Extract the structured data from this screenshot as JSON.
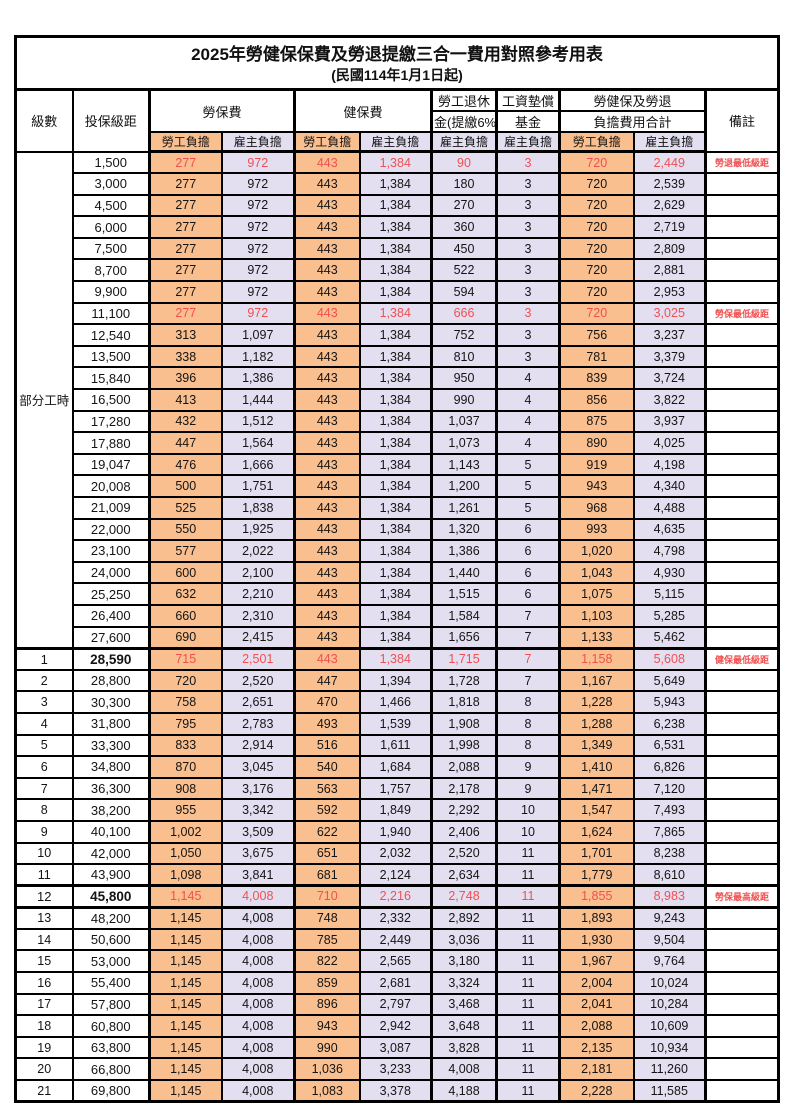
{
  "title": {
    "line1": "2025年勞健保保費及勞退提繳三合一費用對照參考用表",
    "line2": "(民國114年1月1日起)"
  },
  "colors": {
    "employee_bg": "#FABF8F",
    "employer_bg": "#E3DFF1",
    "highlight_text": "#F05050",
    "border": "#000000"
  },
  "header": {
    "level": "級數",
    "bracket": "投保級距",
    "labor_insurance": "勞保費",
    "health_insurance": "健保費",
    "pension_line1": "勞工退休",
    "pension_line2": "金(提繳6%)",
    "wage_fund_line1": "工資墊償",
    "wage_fund_line2": "基金",
    "total_line1": "勞健保及勞退",
    "total_line2": "負擔費用合計",
    "remark": "備註",
    "employee_share": "勞工負擔",
    "employer_share": "雇主負擔"
  },
  "table": {
    "part_time_label": "部分工時",
    "part_time_span": 23,
    "fee_column_names": [
      "labor-employee",
      "labor-employer",
      "health-employee",
      "health-employer",
      "pension-employer",
      "wagefund-employer",
      "total-employee",
      "total-employer"
    ],
    "rows": [
      {
        "bracket": "1,500",
        "fees": [
          "277",
          "972",
          "443",
          "1,384",
          "90",
          "3",
          "720",
          "2,449"
        ],
        "remark": "勞退最低級距",
        "red": true
      },
      {
        "bracket": "3,000",
        "fees": [
          "277",
          "972",
          "443",
          "1,384",
          "180",
          "3",
          "720",
          "2,539"
        ],
        "remark": ""
      },
      {
        "bracket": "4,500",
        "fees": [
          "277",
          "972",
          "443",
          "1,384",
          "270",
          "3",
          "720",
          "2,629"
        ],
        "remark": ""
      },
      {
        "bracket": "6,000",
        "fees": [
          "277",
          "972",
          "443",
          "1,384",
          "360",
          "3",
          "720",
          "2,719"
        ],
        "remark": ""
      },
      {
        "bracket": "7,500",
        "fees": [
          "277",
          "972",
          "443",
          "1,384",
          "450",
          "3",
          "720",
          "2,809"
        ],
        "remark": ""
      },
      {
        "bracket": "8,700",
        "fees": [
          "277",
          "972",
          "443",
          "1,384",
          "522",
          "3",
          "720",
          "2,881"
        ],
        "remark": ""
      },
      {
        "bracket": "9,900",
        "fees": [
          "277",
          "972",
          "443",
          "1,384",
          "594",
          "3",
          "720",
          "2,953"
        ],
        "remark": ""
      },
      {
        "bracket": "11,100",
        "fees": [
          "277",
          "972",
          "443",
          "1,384",
          "666",
          "3",
          "720",
          "3,025"
        ],
        "remark": "勞保最低級距",
        "red": true
      },
      {
        "bracket": "12,540",
        "fees": [
          "313",
          "1,097",
          "443",
          "1,384",
          "752",
          "3",
          "756",
          "3,237"
        ],
        "remark": ""
      },
      {
        "bracket": "13,500",
        "fees": [
          "338",
          "1,182",
          "443",
          "1,384",
          "810",
          "3",
          "781",
          "3,379"
        ],
        "remark": ""
      },
      {
        "bracket": "15,840",
        "fees": [
          "396",
          "1,386",
          "443",
          "1,384",
          "950",
          "4",
          "839",
          "3,724"
        ],
        "remark": ""
      },
      {
        "bracket": "16,500",
        "fees": [
          "413",
          "1,444",
          "443",
          "1,384",
          "990",
          "4",
          "856",
          "3,822"
        ],
        "remark": ""
      },
      {
        "bracket": "17,280",
        "fees": [
          "432",
          "1,512",
          "443",
          "1,384",
          "1,037",
          "4",
          "875",
          "3,937"
        ],
        "remark": ""
      },
      {
        "bracket": "17,880",
        "fees": [
          "447",
          "1,564",
          "443",
          "1,384",
          "1,073",
          "4",
          "890",
          "4,025"
        ],
        "remark": ""
      },
      {
        "bracket": "19,047",
        "fees": [
          "476",
          "1,666",
          "443",
          "1,384",
          "1,143",
          "5",
          "919",
          "4,198"
        ],
        "remark": ""
      },
      {
        "bracket": "20,008",
        "fees": [
          "500",
          "1,751",
          "443",
          "1,384",
          "1,200",
          "5",
          "943",
          "4,340"
        ],
        "remark": ""
      },
      {
        "bracket": "21,009",
        "fees": [
          "525",
          "1,838",
          "443",
          "1,384",
          "1,261",
          "5",
          "968",
          "4,488"
        ],
        "remark": ""
      },
      {
        "bracket": "22,000",
        "fees": [
          "550",
          "1,925",
          "443",
          "1,384",
          "1,320",
          "6",
          "993",
          "4,635"
        ],
        "remark": ""
      },
      {
        "bracket": "23,100",
        "fees": [
          "577",
          "2,022",
          "443",
          "1,384",
          "1,386",
          "6",
          "1,020",
          "4,798"
        ],
        "remark": ""
      },
      {
        "bracket": "24,000",
        "fees": [
          "600",
          "2,100",
          "443",
          "1,384",
          "1,440",
          "6",
          "1,043",
          "4,930"
        ],
        "remark": ""
      },
      {
        "bracket": "25,250",
        "fees": [
          "632",
          "2,210",
          "443",
          "1,384",
          "1,515",
          "6",
          "1,075",
          "5,115"
        ],
        "remark": ""
      },
      {
        "bracket": "26,400",
        "fees": [
          "660",
          "2,310",
          "443",
          "1,384",
          "1,584",
          "7",
          "1,103",
          "5,285"
        ],
        "remark": ""
      },
      {
        "bracket": "27,600",
        "fees": [
          "690",
          "2,415",
          "443",
          "1,384",
          "1,656",
          "7",
          "1,133",
          "5,462"
        ],
        "remark": ""
      },
      {
        "level": "1",
        "bracket": "28,590",
        "fees": [
          "715",
          "2,501",
          "443",
          "1,384",
          "1,715",
          "7",
          "1,158",
          "5,608"
        ],
        "remark": "健保最低級距",
        "red": true,
        "bold": true,
        "thick_top": true
      },
      {
        "level": "2",
        "bracket": "28,800",
        "fees": [
          "720",
          "2,520",
          "447",
          "1,394",
          "1,728",
          "7",
          "1,167",
          "5,649"
        ],
        "remark": ""
      },
      {
        "level": "3",
        "bracket": "30,300",
        "fees": [
          "758",
          "2,651",
          "470",
          "1,466",
          "1,818",
          "8",
          "1,228",
          "5,943"
        ],
        "remark": ""
      },
      {
        "level": "4",
        "bracket": "31,800",
        "fees": [
          "795",
          "2,783",
          "493",
          "1,539",
          "1,908",
          "8",
          "1,288",
          "6,238"
        ],
        "remark": ""
      },
      {
        "level": "5",
        "bracket": "33,300",
        "fees": [
          "833",
          "2,914",
          "516",
          "1,611",
          "1,998",
          "8",
          "1,349",
          "6,531"
        ],
        "remark": ""
      },
      {
        "level": "6",
        "bracket": "34,800",
        "fees": [
          "870",
          "3,045",
          "540",
          "1,684",
          "2,088",
          "9",
          "1,410",
          "6,826"
        ],
        "remark": ""
      },
      {
        "level": "7",
        "bracket": "36,300",
        "fees": [
          "908",
          "3,176",
          "563",
          "1,757",
          "2,178",
          "9",
          "1,471",
          "7,120"
        ],
        "remark": ""
      },
      {
        "level": "8",
        "bracket": "38,200",
        "fees": [
          "955",
          "3,342",
          "592",
          "1,849",
          "2,292",
          "10",
          "1,547",
          "7,493"
        ],
        "remark": ""
      },
      {
        "level": "9",
        "bracket": "40,100",
        "fees": [
          "1,002",
          "3,509",
          "622",
          "1,940",
          "2,406",
          "10",
          "1,624",
          "7,865"
        ],
        "remark": ""
      },
      {
        "level": "10",
        "bracket": "42,000",
        "fees": [
          "1,050",
          "3,675",
          "651",
          "2,032",
          "2,520",
          "11",
          "1,701",
          "8,238"
        ],
        "remark": ""
      },
      {
        "level": "11",
        "bracket": "43,900",
        "fees": [
          "1,098",
          "3,841",
          "681",
          "2,124",
          "2,634",
          "11",
          "1,779",
          "8,610"
        ],
        "remark": ""
      },
      {
        "level": "12",
        "bracket": "45,800",
        "fees": [
          "1,145",
          "4,008",
          "710",
          "2,216",
          "2,748",
          "11",
          "1,855",
          "8,983"
        ],
        "remark": "勞保最高級距",
        "red": true,
        "bold": true,
        "thick_top": true,
        "thick_bottom": true
      },
      {
        "level": "13",
        "bracket": "48,200",
        "fees": [
          "1,145",
          "4,008",
          "748",
          "2,332",
          "2,892",
          "11",
          "1,893",
          "9,243"
        ],
        "remark": ""
      },
      {
        "level": "14",
        "bracket": "50,600",
        "fees": [
          "1,145",
          "4,008",
          "785",
          "2,449",
          "3,036",
          "11",
          "1,930",
          "9,504"
        ],
        "remark": ""
      },
      {
        "level": "15",
        "bracket": "53,000",
        "fees": [
          "1,145",
          "4,008",
          "822",
          "2,565",
          "3,180",
          "11",
          "1,967",
          "9,764"
        ],
        "remark": ""
      },
      {
        "level": "16",
        "bracket": "55,400",
        "fees": [
          "1,145",
          "4,008",
          "859",
          "2,681",
          "3,324",
          "11",
          "2,004",
          "10,024"
        ],
        "remark": ""
      },
      {
        "level": "17",
        "bracket": "57,800",
        "fees": [
          "1,145",
          "4,008",
          "896",
          "2,797",
          "3,468",
          "11",
          "2,041",
          "10,284"
        ],
        "remark": ""
      },
      {
        "level": "18",
        "bracket": "60,800",
        "fees": [
          "1,145",
          "4,008",
          "943",
          "2,942",
          "3,648",
          "11",
          "2,088",
          "10,609"
        ],
        "remark": ""
      },
      {
        "level": "19",
        "bracket": "63,800",
        "fees": [
          "1,145",
          "4,008",
          "990",
          "3,087",
          "3,828",
          "11",
          "2,135",
          "10,934"
        ],
        "remark": ""
      },
      {
        "level": "20",
        "bracket": "66,800",
        "fees": [
          "1,145",
          "4,008",
          "1,036",
          "3,233",
          "4,008",
          "11",
          "2,181",
          "11,260"
        ],
        "remark": ""
      },
      {
        "level": "21",
        "bracket": "69,800",
        "fees": [
          "1,145",
          "4,008",
          "1,083",
          "3,378",
          "4,188",
          "11",
          "2,228",
          "11,585"
        ],
        "remark": ""
      }
    ]
  }
}
